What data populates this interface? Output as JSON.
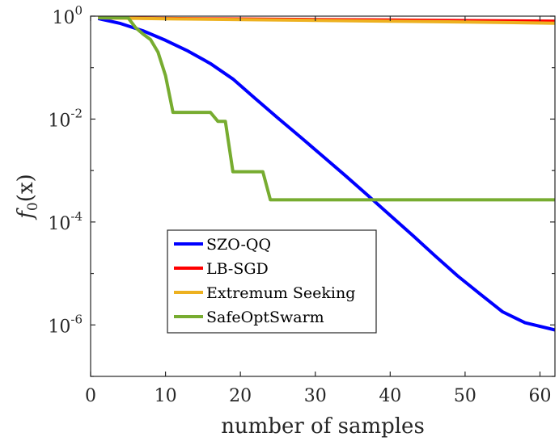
{
  "chart_data": {
    "type": "line",
    "xlabel": "number of samples",
    "ylabel": "f_0(x)",
    "xlim": [
      0,
      62
    ],
    "ylim_log10": [
      -7,
      0
    ],
    "y_scale": "log",
    "x_ticks": [
      0,
      10,
      20,
      30,
      40,
      50,
      60
    ],
    "x_tick_labels": [
      "0",
      "10",
      "20",
      "30",
      "40",
      "50",
      "60"
    ],
    "y_ticks_exp": [
      0,
      -2,
      -4,
      -6
    ],
    "y_tick_base": "10",
    "y_tick_exponents": [
      "0",
      "-2",
      "-4",
      "-6"
    ],
    "grid": false,
    "legend_position": "bottom-left",
    "series": [
      {
        "name": "SZO-QQ",
        "color": "#0000ff",
        "x": [
          1,
          4,
          7,
          10,
          13,
          16,
          19,
          22,
          25,
          28,
          31,
          34,
          37,
          40,
          43,
          46,
          49,
          52,
          55,
          58,
          62
        ],
        "y": [
          0.9,
          0.72,
          0.52,
          0.34,
          0.21,
          0.12,
          0.06,
          0.025,
          0.0105,
          0.0045,
          0.0019,
          0.0008,
          0.00033,
          0.000135,
          5.5e-05,
          2.2e-05,
          9e-06,
          4e-06,
          1.8e-06,
          1.1e-06,
          8e-07
        ]
      },
      {
        "name": "LB-SGD",
        "color": "#ff0000",
        "x": [
          1,
          10,
          20,
          30,
          40,
          50,
          62
        ],
        "y": [
          0.93,
          0.9,
          0.88,
          0.86,
          0.84,
          0.82,
          0.8
        ]
      },
      {
        "name": "Extremum Seeking",
        "color": "#edb120",
        "x": [
          1,
          10,
          20,
          30,
          40,
          50,
          62
        ],
        "y": [
          0.93,
          0.89,
          0.86,
          0.83,
          0.8,
          0.77,
          0.73
        ]
      },
      {
        "name": "SafeOptSwarm",
        "color": "#77ac30",
        "x": [
          1,
          5,
          6,
          7,
          8,
          9,
          10,
          11,
          16,
          17,
          18,
          19,
          23,
          24,
          62
        ],
        "y": [
          0.93,
          0.93,
          0.6,
          0.45,
          0.35,
          0.2,
          0.07,
          0.0135,
          0.0135,
          0.009,
          0.009,
          0.00095,
          0.00095,
          0.00027,
          0.00027
        ]
      }
    ]
  }
}
